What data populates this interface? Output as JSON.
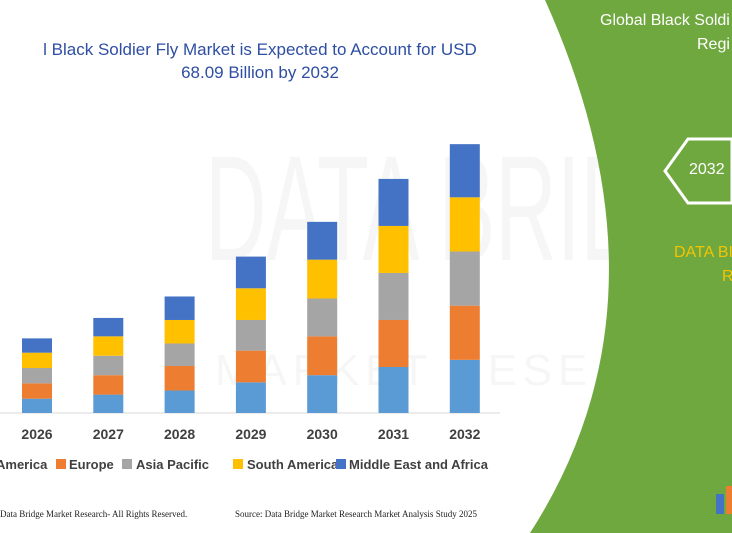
{
  "title_line1": "l Black Soldier Fly Market is Expected to Account for USD",
  "title_line2": "68.09 Billion by 2032",
  "footer_left": "Data Bridge Market Research- All Rights Reserved.",
  "footer_right": "Source: Data Bridge Market Research Market Analysis Study 2025",
  "panel": {
    "heading_line1": "Global Black Soldi",
    "heading_line2": "Regi",
    "hex_year": "2032",
    "brand_line1": "DATA BI",
    "brand_line2": "R"
  },
  "watermark": {
    "line1": "DATA BRIDGE",
    "line2": "MARKET RESEARCH"
  },
  "colors": {
    "panel_green": "#70a840",
    "brand_yellow": "#f5c400",
    "title_blue": "#2e4ea3"
  },
  "chart_data": {
    "type": "bar",
    "stacked": true,
    "categories": [
      "2026",
      "2027",
      "2028",
      "2029",
      "2030",
      "2031",
      "2032"
    ],
    "series": [
      {
        "name": "America",
        "color": "#5b9bd5",
        "values": [
          14,
          18,
          22,
          30,
          37,
          45,
          52
        ]
      },
      {
        "name": "Europe",
        "color": "#ed7d31",
        "values": [
          15,
          19,
          24,
          31,
          38,
          46,
          53
        ]
      },
      {
        "name": "Asia Pacific",
        "color": "#a5a5a5",
        "values": [
          15,
          19,
          22,
          30,
          37,
          46,
          53
        ]
      },
      {
        "name": "South America",
        "color": "#ffc000",
        "values": [
          15,
          19,
          23,
          31,
          38,
          46,
          53
        ]
      },
      {
        "name": "Middle East and Africa",
        "color": "#4472c4",
        "values": [
          14,
          18,
          23,
          31,
          37,
          46,
          52
        ]
      }
    ],
    "ylim": [
      0,
      270
    ],
    "grid": false,
    "legend": "bottom"
  }
}
